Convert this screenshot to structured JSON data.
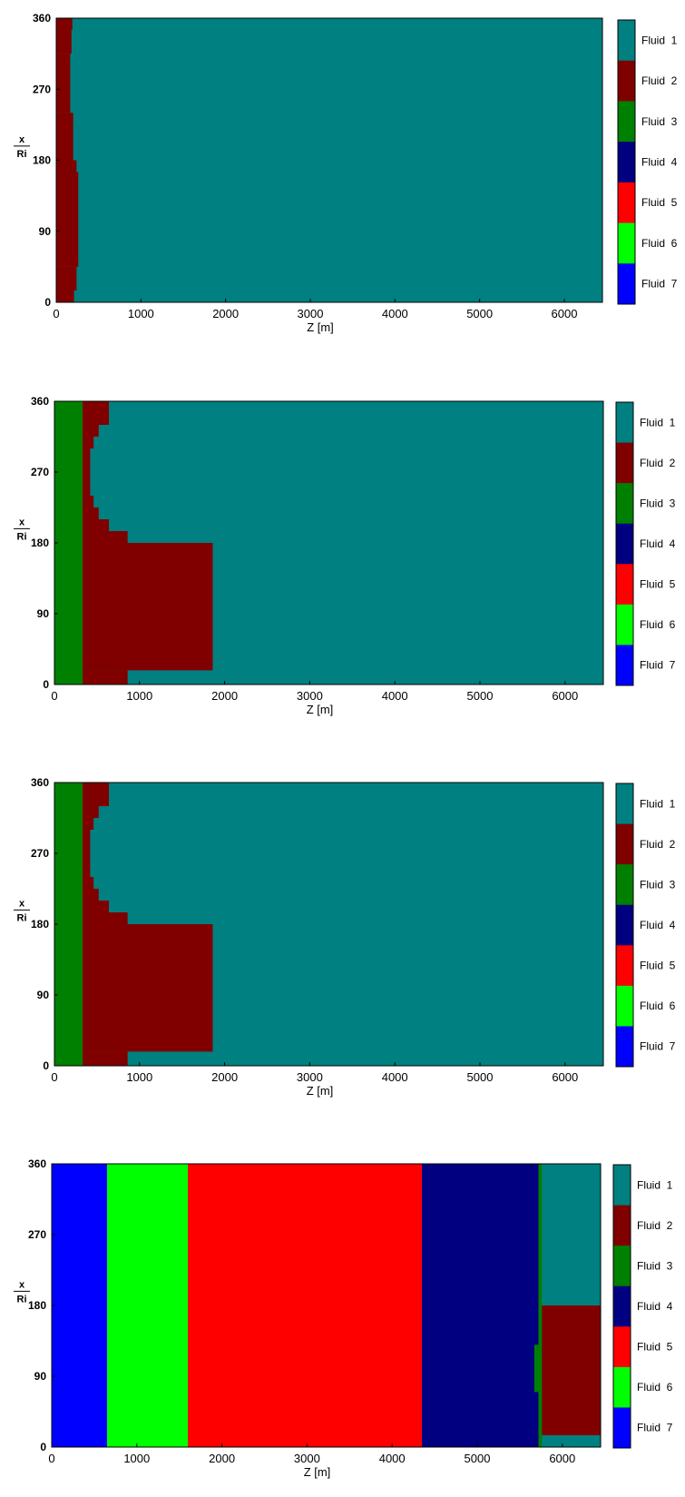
{
  "colors": {
    "Fluid 1": "#008080",
    "Fluid 2": "#800000",
    "Fluid 3": "#008000",
    "Fluid 4": "#000080",
    "Fluid 5": "#ff0000",
    "Fluid 6": "#00ff00",
    "Fluid 7": "#0000ff"
  },
  "chart_data": [
    {
      "type": "heatmap",
      "xlabel": "Z [m]",
      "ylabel_top": "x",
      "ylabel_bottom": "Ri",
      "xlim": [
        0,
        6450
      ],
      "ylim": [
        0,
        360
      ],
      "xticks": [
        "0",
        "1000",
        "2000",
        "3000",
        "4000",
        "5000",
        "6000"
      ],
      "yticks": [
        "0",
        "90",
        "180",
        "270",
        "360"
      ],
      "legend": [
        "Fluid  1",
        "Fluid  2",
        "Fluid  3",
        "Fluid  4",
        "Fluid  5",
        "Fluid  6",
        "Fluid  7"
      ],
      "background": "Fluid 1",
      "regions": [
        {
          "fluid": "Fluid 2",
          "z0": 0,
          "z1": 210,
          "theta0": 0,
          "theta1": 15
        },
        {
          "fluid": "Fluid 2",
          "z0": 0,
          "z1": 240,
          "theta0": 15,
          "theta1": 45
        },
        {
          "fluid": "Fluid 2",
          "z0": 0,
          "z1": 260,
          "theta0": 45,
          "theta1": 165
        },
        {
          "fluid": "Fluid 2",
          "z0": 0,
          "z1": 240,
          "theta0": 165,
          "theta1": 180
        },
        {
          "fluid": "Fluid 2",
          "z0": 0,
          "z1": 200,
          "theta0": 180,
          "theta1": 240
        },
        {
          "fluid": "Fluid 2",
          "z0": 0,
          "z1": 165,
          "theta0": 240,
          "theta1": 315
        },
        {
          "fluid": "Fluid 2",
          "z0": 0,
          "z1": 180,
          "theta0": 315,
          "theta1": 345
        },
        {
          "fluid": "Fluid 2",
          "z0": 0,
          "z1": 190,
          "theta0": 345,
          "theta1": 360
        }
      ]
    },
    {
      "type": "heatmap",
      "xlabel": "Z [m]",
      "ylabel_top": "x",
      "ylabel_bottom": "Ri",
      "xlim": [
        0,
        6450
      ],
      "ylim": [
        0,
        360
      ],
      "xticks": [
        "0",
        "1000",
        "2000",
        "3000",
        "4000",
        "5000",
        "6000"
      ],
      "yticks": [
        "0",
        "90",
        "180",
        "270",
        "360"
      ],
      "legend": [
        "Fluid  1",
        "Fluid  2",
        "Fluid  3",
        "Fluid  4",
        "Fluid  5",
        "Fluid  6",
        "Fluid  7"
      ],
      "background": "Fluid 1",
      "regions": [
        {
          "fluid": "Fluid 3",
          "z0": 0,
          "z1": 330,
          "theta0": 0,
          "theta1": 360
        },
        {
          "fluid": "Fluid 2",
          "z0": 330,
          "z1": 860,
          "theta0": 0,
          "theta1": 18
        },
        {
          "fluid": "Fluid 2",
          "z0": 330,
          "z1": 1860,
          "theta0": 18,
          "theta1": 180
        },
        {
          "fluid": "Fluid 2",
          "z0": 330,
          "z1": 860,
          "theta0": 180,
          "theta1": 195
        },
        {
          "fluid": "Fluid 2",
          "z0": 330,
          "z1": 640,
          "theta0": 195,
          "theta1": 210
        },
        {
          "fluid": "Fluid 2",
          "z0": 330,
          "z1": 520,
          "theta0": 210,
          "theta1": 225
        },
        {
          "fluid": "Fluid 2",
          "z0": 330,
          "z1": 460,
          "theta0": 225,
          "theta1": 240
        },
        {
          "fluid": "Fluid 2",
          "z0": 330,
          "z1": 420,
          "theta0": 240,
          "theta1": 300
        },
        {
          "fluid": "Fluid 2",
          "z0": 330,
          "z1": 460,
          "theta0": 300,
          "theta1": 315
        },
        {
          "fluid": "Fluid 2",
          "z0": 330,
          "z1": 520,
          "theta0": 315,
          "theta1": 330
        },
        {
          "fluid": "Fluid 2",
          "z0": 330,
          "z1": 640,
          "theta0": 330,
          "theta1": 360
        }
      ]
    },
    {
      "type": "heatmap",
      "xlabel": "Z [m]",
      "ylabel_top": "x",
      "ylabel_bottom": "Ri",
      "xlim": [
        0,
        6450
      ],
      "ylim": [
        0,
        360
      ],
      "xticks": [
        "0",
        "1000",
        "2000",
        "3000",
        "4000",
        "5000",
        "6000"
      ],
      "yticks": [
        "0",
        "90",
        "180",
        "270",
        "360"
      ],
      "legend": [
        "Fluid  1",
        "Fluid  2",
        "Fluid  3",
        "Fluid  4",
        "Fluid  5",
        "Fluid  6",
        "Fluid  7"
      ],
      "background": "Fluid 1",
      "regions": [
        {
          "fluid": "Fluid 3",
          "z0": 0,
          "z1": 330,
          "theta0": 0,
          "theta1": 360
        },
        {
          "fluid": "Fluid 2",
          "z0": 330,
          "z1": 860,
          "theta0": 0,
          "theta1": 18
        },
        {
          "fluid": "Fluid 2",
          "z0": 330,
          "z1": 1860,
          "theta0": 18,
          "theta1": 180
        },
        {
          "fluid": "Fluid 2",
          "z0": 330,
          "z1": 860,
          "theta0": 180,
          "theta1": 195
        },
        {
          "fluid": "Fluid 2",
          "z0": 330,
          "z1": 640,
          "theta0": 195,
          "theta1": 210
        },
        {
          "fluid": "Fluid 2",
          "z0": 330,
          "z1": 520,
          "theta0": 210,
          "theta1": 225
        },
        {
          "fluid": "Fluid 2",
          "z0": 330,
          "z1": 460,
          "theta0": 225,
          "theta1": 240
        },
        {
          "fluid": "Fluid 2",
          "z0": 330,
          "z1": 420,
          "theta0": 240,
          "theta1": 300
        },
        {
          "fluid": "Fluid 2",
          "z0": 330,
          "z1": 460,
          "theta0": 300,
          "theta1": 315
        },
        {
          "fluid": "Fluid 2",
          "z0": 330,
          "z1": 520,
          "theta0": 315,
          "theta1": 330
        },
        {
          "fluid": "Fluid 2",
          "z0": 330,
          "z1": 640,
          "theta0": 330,
          "theta1": 360
        }
      ]
    },
    {
      "type": "heatmap",
      "xlabel": "Z [m]",
      "ylabel_top": "x",
      "ylabel_bottom": "Ri",
      "xlim": [
        0,
        6450
      ],
      "ylim": [
        0,
        360
      ],
      "xticks": [
        "0",
        "1000",
        "2000",
        "3000",
        "4000",
        "5000",
        "6000"
      ],
      "yticks": [
        "0",
        "90",
        "180",
        "270",
        "360"
      ],
      "legend": [
        "Fluid  1",
        "Fluid  2",
        "Fluid  3",
        "Fluid  4",
        "Fluid  5",
        "Fluid  6",
        "Fluid  7"
      ],
      "background": "Fluid 1",
      "regions": [
        {
          "fluid": "Fluid 7",
          "z0": 0,
          "z1": 650,
          "theta0": 0,
          "theta1": 360
        },
        {
          "fluid": "Fluid 6",
          "z0": 650,
          "z1": 1600,
          "theta0": 0,
          "theta1": 360
        },
        {
          "fluid": "Fluid 5",
          "z0": 1600,
          "z1": 4350,
          "theta0": 0,
          "theta1": 360
        },
        {
          "fluid": "Fluid 4",
          "z0": 4350,
          "z1": 5720,
          "theta0": 0,
          "theta1": 360
        },
        {
          "fluid": "Fluid 3",
          "z0": 5720,
          "z1": 5760,
          "theta0": 0,
          "theta1": 360
        },
        {
          "fluid": "Fluid 3",
          "z0": 5670,
          "z1": 5720,
          "theta0": 70,
          "theta1": 130
        },
        {
          "fluid": "Fluid 2",
          "z0": 5760,
          "z1": 6450,
          "theta0": 15,
          "theta1": 180
        }
      ]
    }
  ]
}
